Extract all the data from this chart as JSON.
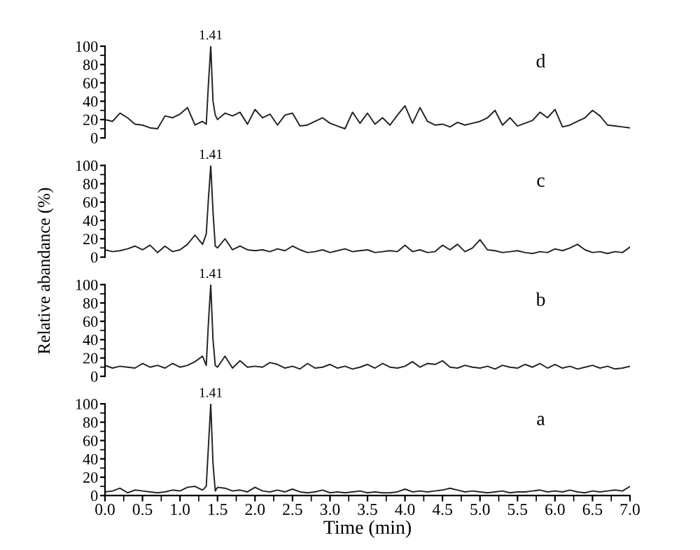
{
  "chart_data": [
    {
      "type": "line",
      "tick_labels": "y",
      "marker": "none",
      "line_style": "solid",
      "xlim": [
        0,
        7
      ],
      "ylim": [
        0,
        100
      ],
      "yticks": [
        0,
        20,
        40,
        60,
        80,
        100
      ],
      "annotations": [
        "d",
        "1.41"
      ],
      "x": [
        0,
        0.1,
        0.2,
        0.3,
        0.4,
        0.5,
        0.6,
        0.7,
        0.8,
        0.9,
        1.0,
        1.1,
        1.2,
        1.3,
        1.35,
        1.38,
        1.41,
        1.44,
        1.47,
        1.5,
        1.6,
        1.7,
        1.8,
        1.9,
        2.0,
        2.1,
        2.2,
        2.3,
        2.4,
        2.5,
        2.6,
        2.7,
        2.8,
        2.9,
        3.0,
        3.1,
        3.2,
        3.3,
        3.4,
        3.5,
        3.6,
        3.7,
        3.8,
        3.9,
        4.0,
        4.1,
        4.2,
        4.3,
        4.4,
        4.5,
        4.6,
        4.7,
        4.8,
        4.9,
        5.0,
        5.1,
        5.2,
        5.3,
        5.4,
        5.5,
        5.6,
        5.7,
        5.8,
        5.9,
        6.0,
        6.1,
        6.2,
        6.3,
        6.4,
        6.5,
        6.6,
        6.7,
        6.8,
        6.9,
        7.0
      ],
      "series": [
        {
          "color": "#222222",
          "values": [
            20,
            18,
            27,
            22,
            15,
            14,
            11,
            10,
            24,
            22,
            26,
            33,
            14,
            18,
            15,
            60,
            100,
            40,
            25,
            20,
            27,
            24,
            28,
            15,
            31,
            22,
            26,
            14,
            25,
            27,
            13,
            14,
            18,
            22,
            16,
            13,
            10,
            28,
            16,
            27,
            15,
            22,
            14,
            25,
            35,
            16,
            33,
            18,
            14,
            15,
            12,
            17,
            14,
            16,
            18,
            22,
            30,
            14,
            22,
            13,
            16,
            19,
            28,
            22,
            31,
            12,
            14,
            18,
            22,
            30,
            24,
            14,
            13,
            12,
            11
          ]
        }
      ]
    },
    {
      "type": "line",
      "tick_labels": "y",
      "marker": "none",
      "line_style": "solid",
      "xlim": [
        0,
        7
      ],
      "ylim": [
        0,
        100
      ],
      "yticks": [
        0,
        20,
        40,
        60,
        80,
        100
      ],
      "ylabel": "Relative abandance (%)",
      "annotations": [
        "c",
        "1.41"
      ],
      "x": [
        0,
        0.1,
        0.2,
        0.3,
        0.4,
        0.5,
        0.6,
        0.7,
        0.8,
        0.9,
        1.0,
        1.1,
        1.2,
        1.3,
        1.35,
        1.38,
        1.41,
        1.44,
        1.47,
        1.5,
        1.6,
        1.7,
        1.8,
        1.9,
        2.0,
        2.1,
        2.2,
        2.3,
        2.4,
        2.5,
        2.6,
        2.7,
        2.8,
        2.9,
        3.0,
        3.1,
        3.2,
        3.3,
        3.4,
        3.5,
        3.6,
        3.7,
        3.8,
        3.9,
        4.0,
        4.1,
        4.2,
        4.3,
        4.4,
        4.5,
        4.6,
        4.7,
        4.8,
        4.9,
        5.0,
        5.1,
        5.2,
        5.3,
        5.4,
        5.5,
        5.6,
        5.7,
        5.8,
        5.9,
        6.0,
        6.1,
        6.2,
        6.3,
        6.4,
        6.5,
        6.6,
        6.7,
        6.8,
        6.9,
        7.0
      ],
      "series": [
        {
          "color": "#222222",
          "values": [
            8,
            6,
            7,
            9,
            12,
            8,
            13,
            5,
            12,
            6,
            8,
            14,
            24,
            14,
            25,
            65,
            100,
            50,
            12,
            10,
            20,
            8,
            12,
            8,
            7,
            8,
            6,
            9,
            7,
            12,
            8,
            5,
            6,
            8,
            5,
            7,
            9,
            6,
            7,
            8,
            5,
            6,
            7,
            6,
            13,
            6,
            8,
            5,
            6,
            13,
            8,
            14,
            6,
            10,
            19,
            8,
            7,
            5,
            6,
            7,
            5,
            4,
            6,
            5,
            9,
            7,
            10,
            14,
            8,
            5,
            6,
            4,
            6,
            5,
            11
          ]
        }
      ]
    },
    {
      "type": "line",
      "tick_labels": "y",
      "marker": "none",
      "line_style": "solid",
      "xlim": [
        0,
        7
      ],
      "ylim": [
        0,
        100
      ],
      "yticks": [
        0,
        20,
        40,
        60,
        80,
        100
      ],
      "annotations": [
        "b",
        "1.41"
      ],
      "x": [
        0,
        0.1,
        0.2,
        0.3,
        0.4,
        0.5,
        0.6,
        0.7,
        0.8,
        0.9,
        1.0,
        1.1,
        1.2,
        1.3,
        1.35,
        1.38,
        1.41,
        1.44,
        1.47,
        1.5,
        1.6,
        1.7,
        1.8,
        1.9,
        2.0,
        2.1,
        2.2,
        2.3,
        2.4,
        2.5,
        2.6,
        2.7,
        2.8,
        2.9,
        3.0,
        3.1,
        3.2,
        3.3,
        3.4,
        3.5,
        3.6,
        3.7,
        3.8,
        3.9,
        4.0,
        4.1,
        4.2,
        4.3,
        4.4,
        4.5,
        4.6,
        4.7,
        4.8,
        4.9,
        5.0,
        5.1,
        5.2,
        5.3,
        5.4,
        5.5,
        5.6,
        5.7,
        5.8,
        5.9,
        6.0,
        6.1,
        6.2,
        6.3,
        6.4,
        6.5,
        6.6,
        6.7,
        6.8,
        6.9,
        7.0
      ],
      "series": [
        {
          "color": "#222222",
          "values": [
            12,
            9,
            11,
            10,
            9,
            14,
            10,
            12,
            9,
            14,
            10,
            12,
            16,
            22,
            12,
            60,
            100,
            40,
            12,
            10,
            22,
            9,
            17,
            10,
            11,
            10,
            15,
            13,
            9,
            11,
            8,
            14,
            9,
            10,
            13,
            9,
            11,
            8,
            10,
            13,
            9,
            14,
            10,
            9,
            11,
            16,
            10,
            14,
            13,
            17,
            10,
            9,
            12,
            10,
            9,
            11,
            8,
            12,
            10,
            9,
            13,
            10,
            14,
            9,
            13,
            9,
            11,
            8,
            10,
            12,
            9,
            11,
            8,
            9,
            11
          ]
        }
      ]
    },
    {
      "type": "line",
      "marker": "none",
      "line_style": "solid",
      "xlim": [
        0,
        7
      ],
      "xticks": [
        {
          "value": 0,
          "label": "0.0"
        },
        {
          "value": 0.5,
          "label": "0.5"
        },
        {
          "value": 1,
          "label": "1.0"
        },
        {
          "value": 1.5,
          "label": "1.5"
        },
        {
          "value": 2,
          "label": "2.0"
        },
        {
          "value": 2.5,
          "label": "2.5"
        },
        {
          "value": 3,
          "label": "3.0"
        },
        {
          "value": 3.5,
          "label": "3.5"
        },
        {
          "value": 4,
          "label": "4.0"
        },
        {
          "value": 4.5,
          "label": "4.5"
        },
        {
          "value": 5,
          "label": "5.0"
        },
        {
          "value": 5.5,
          "label": "5.5"
        },
        {
          "value": 6,
          "label": "6.0"
        },
        {
          "value": 6.5,
          "label": "6.5"
        },
        {
          "value": 7,
          "label": "7.0"
        }
      ],
      "ylim": [
        0,
        100
      ],
      "yticks": [
        0,
        20,
        40,
        60,
        80,
        100
      ],
      "xlabel": "Time (min)",
      "annotations": [
        "a",
        "1.41"
      ],
      "x": [
        0,
        0.1,
        0.2,
        0.3,
        0.4,
        0.5,
        0.6,
        0.7,
        0.8,
        0.9,
        1.0,
        1.1,
        1.2,
        1.3,
        1.35,
        1.38,
        1.41,
        1.44,
        1.47,
        1.5,
        1.6,
        1.7,
        1.8,
        1.9,
        2.0,
        2.1,
        2.2,
        2.3,
        2.4,
        2.5,
        2.6,
        2.7,
        2.8,
        2.9,
        3.0,
        3.1,
        3.2,
        3.3,
        3.4,
        3.5,
        3.6,
        3.7,
        3.8,
        3.9,
        4.0,
        4.1,
        4.2,
        4.3,
        4.4,
        4.5,
        4.6,
        4.7,
        4.8,
        4.9,
        5.0,
        5.1,
        5.2,
        5.3,
        5.4,
        5.5,
        5.6,
        5.7,
        5.8,
        5.9,
        6.0,
        6.1,
        6.2,
        6.3,
        6.4,
        6.5,
        6.6,
        6.7,
        6.8,
        6.9,
        7.0
      ],
      "series": [
        {
          "color": "#222222",
          "values": [
            4,
            5,
            8,
            3,
            6,
            5,
            4,
            3,
            4,
            6,
            5,
            9,
            10,
            6,
            10,
            55,
            100,
            35,
            5,
            9,
            8,
            5,
            6,
            4,
            9,
            5,
            4,
            6,
            4,
            7,
            4,
            3,
            4,
            6,
            3,
            4,
            3,
            4,
            5,
            3,
            4,
            3,
            3,
            4,
            7,
            4,
            5,
            4,
            5,
            6,
            8,
            6,
            4,
            5,
            4,
            3,
            4,
            5,
            3,
            4,
            4,
            5,
            6,
            4,
            5,
            4,
            6,
            4,
            3,
            5,
            4,
            5,
            6,
            5,
            10
          ]
        }
      ]
    }
  ]
}
